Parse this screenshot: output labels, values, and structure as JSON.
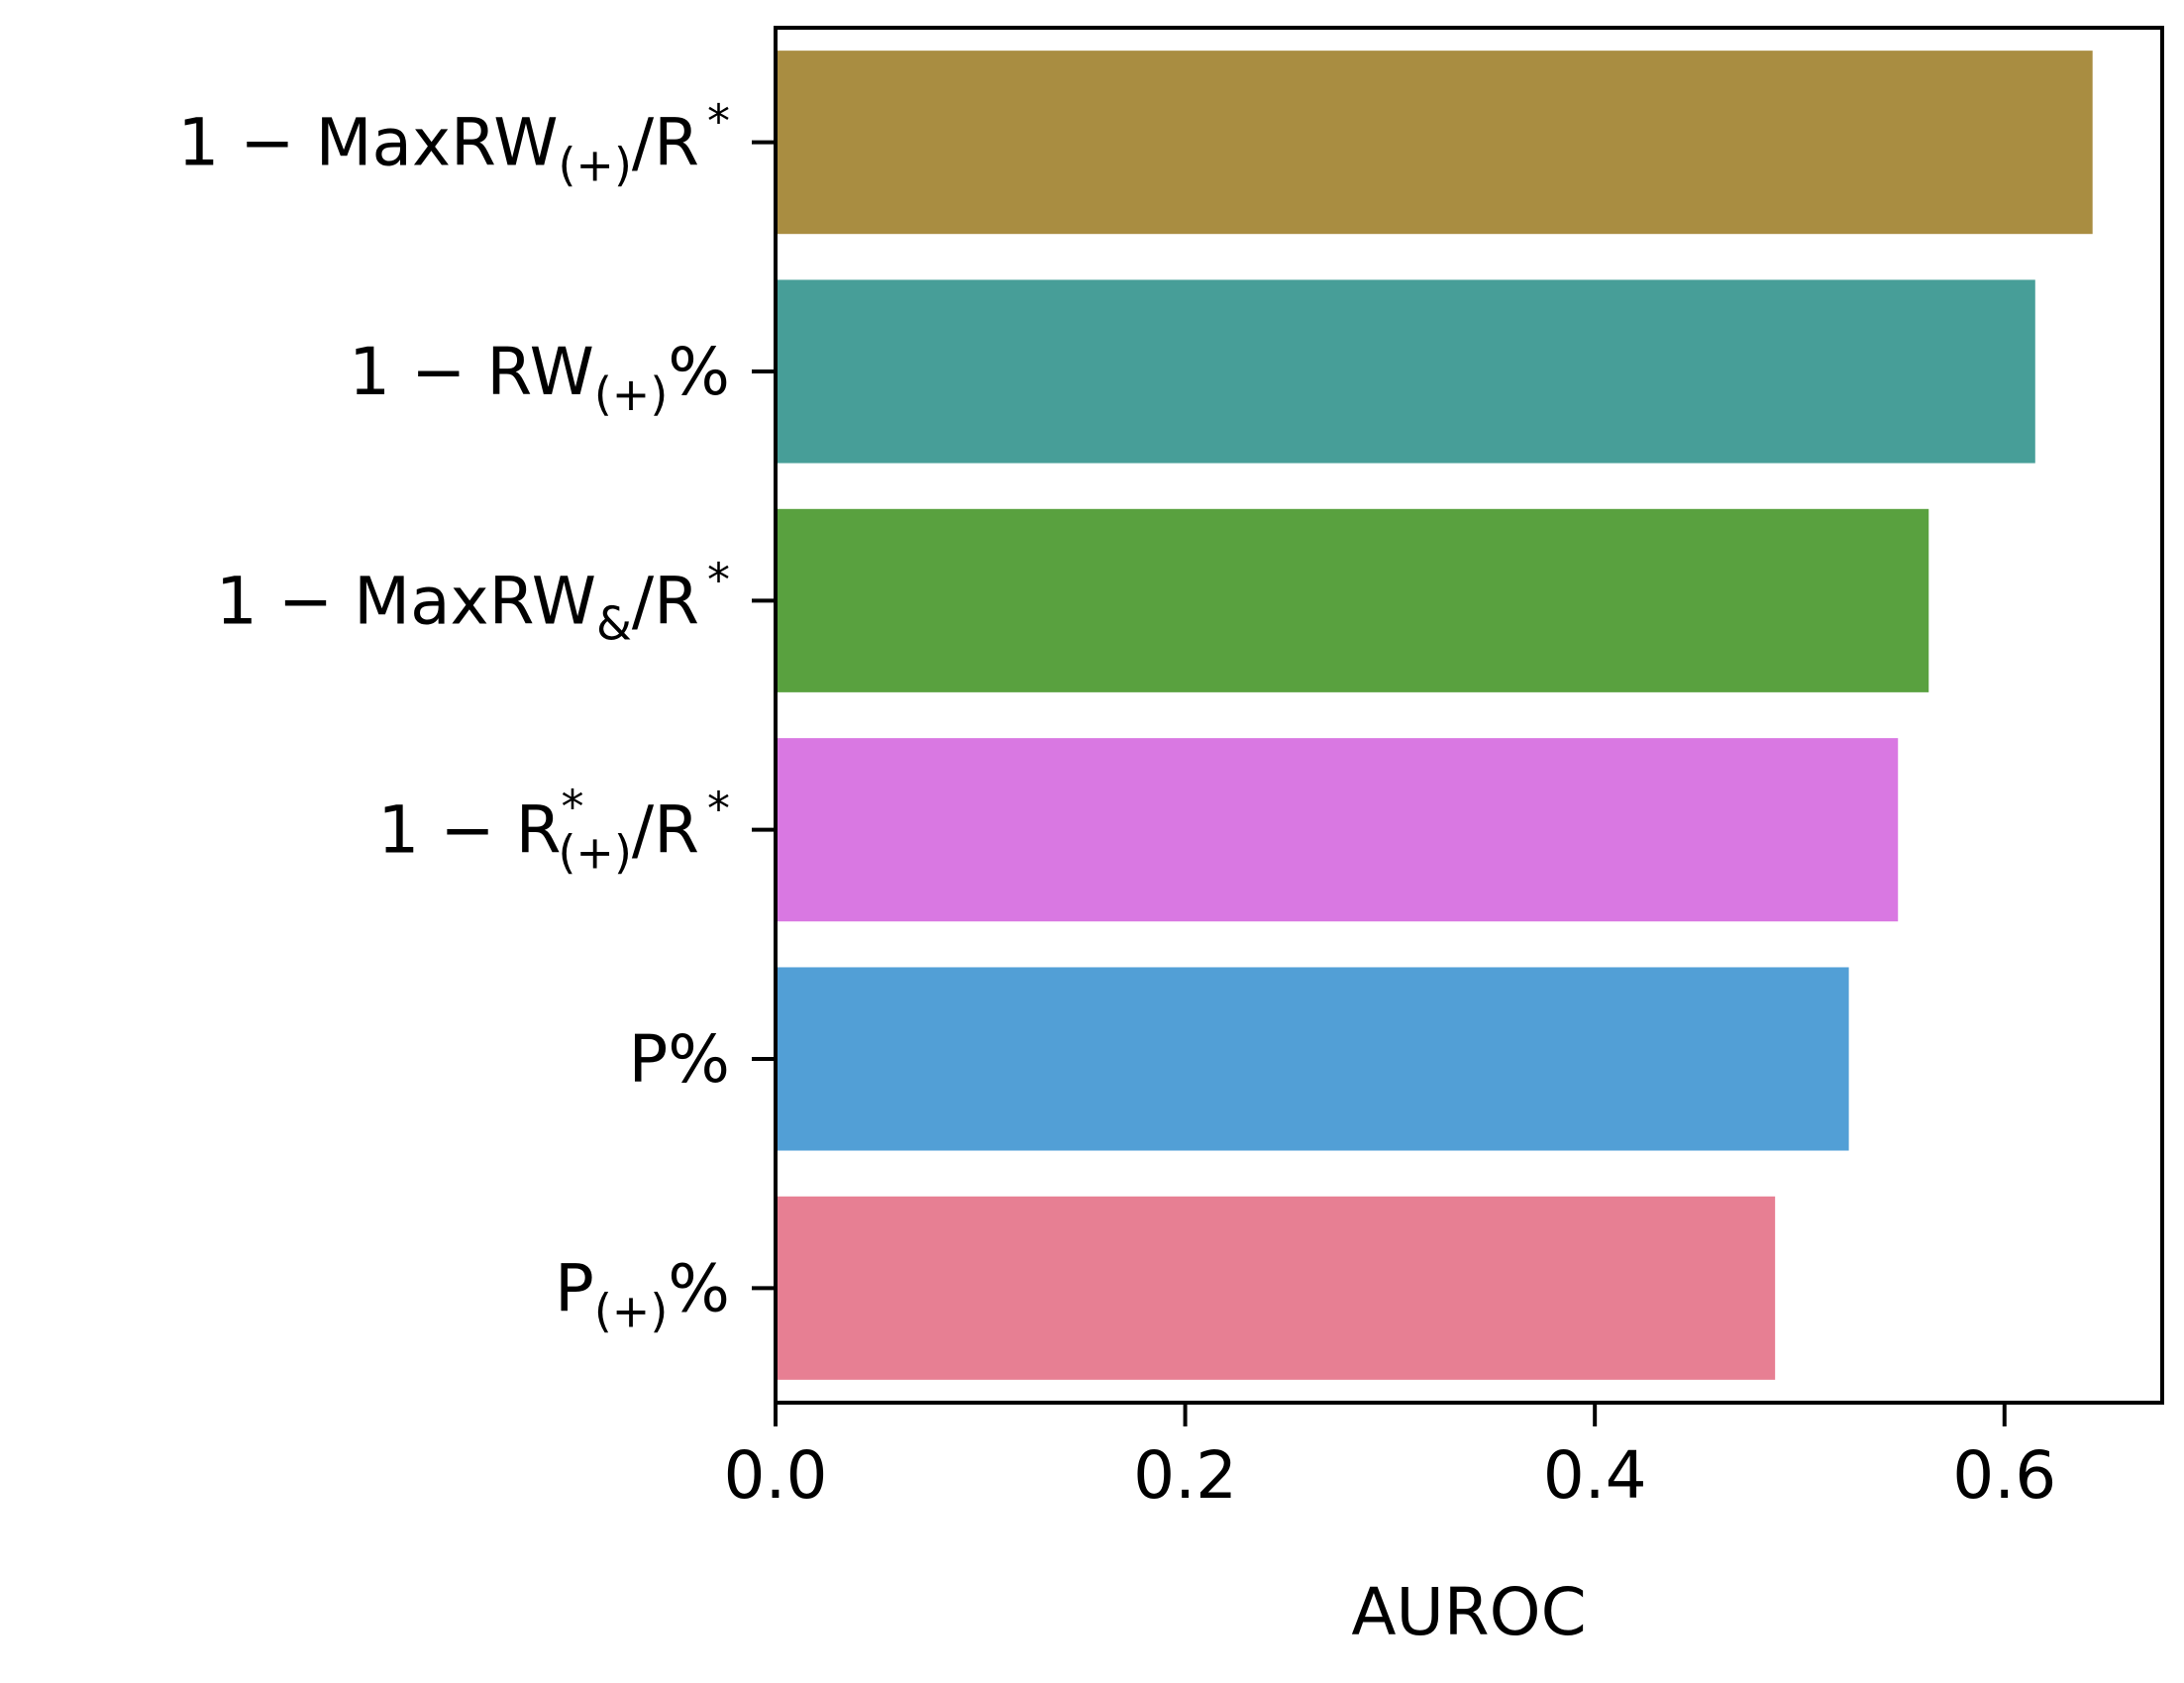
{
  "chart_data": {
    "type": "bar",
    "orientation": "horizontal",
    "categories": [
      {
        "main": "1 − MaxRW",
        "sub": "(+)",
        "sup": "",
        "tail": "/R",
        "tailsup": "*"
      },
      {
        "main": "1 − RW",
        "sub": "(+)",
        "sup": "",
        "tail": "%",
        "tailsup": ""
      },
      {
        "main": "1 − MaxRW",
        "sub": "&",
        "sup": "",
        "tail": "/R",
        "tailsup": "*"
      },
      {
        "main": "1 − R",
        "sub": "(+)",
        "sup": "*",
        "tail": "/R",
        "tailsup": "*"
      },
      {
        "main": "P%",
        "sub": "",
        "sup": "",
        "tail": "",
        "tailsup": ""
      },
      {
        "main": "P",
        "sub": "(+)",
        "sup": "",
        "tail": "%",
        "tailsup": ""
      }
    ],
    "values": [
      0.643,
      0.615,
      0.563,
      0.548,
      0.524,
      0.488
    ],
    "colors": [
      "#a98d41",
      "#479e98",
      "#59a13f",
      "#d978e2",
      "#529fd6",
      "#e77f93"
    ],
    "xlabel": "AUROC",
    "ylabel": "",
    "xlim": [
      0,
      0.677
    ],
    "xticks": [
      "0.0",
      "0.2",
      "0.4",
      "0.6"
    ],
    "xtick_values": [
      0,
      0.2,
      0.4,
      0.6
    ],
    "grid": false
  }
}
